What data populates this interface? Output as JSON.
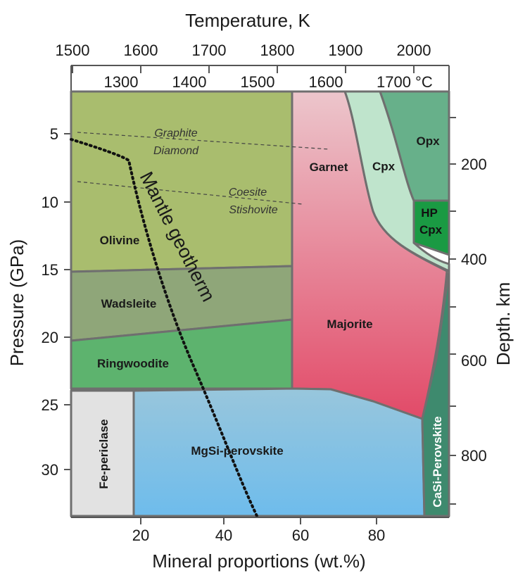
{
  "figure": {
    "top_axis_title": "Temperature, K",
    "kelvin_ticks": [
      "1500",
      "1600",
      "1700",
      "1800",
      "1900",
      "2000"
    ],
    "celsius_ticks": [
      "1300",
      "1400",
      "1500",
      "1600",
      "1700 °C"
    ],
    "left_axis_title": "Pressure (GPa)",
    "pressure_ticks": [
      "5",
      "10",
      "15",
      "20",
      "25",
      "30"
    ],
    "right_axis_title": "Depth. km",
    "depth_ticks": [
      "200",
      "400",
      "600",
      "800"
    ],
    "bottom_axis_title": "Mineral proportions (wt.%)",
    "proportion_ticks": [
      "20",
      "40",
      "60",
      "80"
    ],
    "phases": {
      "olivine": "Olivine",
      "wadsleite": "Wadsleite",
      "ringwoodite": "Ringwoodite",
      "garnet": "Garnet",
      "majorite": "Majorite",
      "cpx": "Cpx",
      "opx": "Opx",
      "hp_cpx_line1": "HP",
      "hp_cpx_line2": "Cpx",
      "fe_periclase": "Fe-periclase",
      "mgsi_perovskite": "MgSi-perovskite",
      "casi_perovskite": "CaSi-Perovskite"
    },
    "transitions": {
      "graphite": "Graphite",
      "diamond": "Diamond",
      "coesite": "Coesite",
      "stishovite": "Stishovite"
    },
    "geotherm_label": "Mantle geotherm",
    "colors": {
      "olivine": "#a9bd6e",
      "wadsleite": "#8fa679",
      "ringwoodite": "#5db36e",
      "garnet_majorite_top": "#ecc6cc",
      "garnet_majorite_bottom": "#e24a68",
      "cpx": "#bfe4cc",
      "opx": "#67b08a",
      "hp_cpx": "#1a9a43",
      "fe_periclase": "#e2e2e2",
      "perovskite_top": "#98c6dc",
      "perovskite_bottom": "#6ebcec",
      "casi_perovskite": "#3e8a6e",
      "outline": "#6f6f6f"
    }
  }
}
